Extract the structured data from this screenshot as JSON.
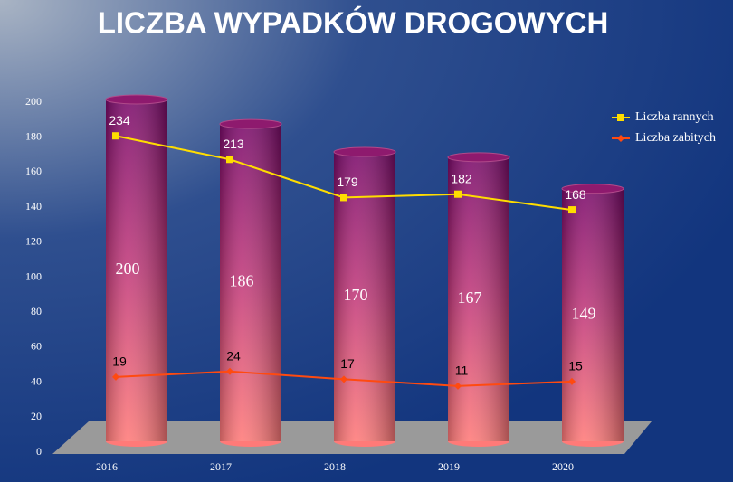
{
  "chart_data": {
    "type": "bar",
    "title": "LICZBA WYPADKÓW DROGOWYCH",
    "categories": [
      "2016",
      "2017",
      "2018",
      "2019",
      "2020"
    ],
    "series": [
      {
        "color": "#c0306e",
        "values": [
          200,
          186,
          170,
          167,
          149
        ]
      },
      {
        "name": "Liczba rannych",
        "type": "line",
        "axis": "y2",
        "color": "#ffdd00",
        "marker": "square",
        "values": [
          234,
          213,
          179,
          182,
          168
        ]
      },
      {
        "name": "Liczba zabitych",
        "type": "line",
        "axis": "y2",
        "color": "#ff4a10",
        "marker": "diamond",
        "values": [
          19,
          24,
          17,
          11,
          15
        ]
      }
    ],
    "ylim": [
      0,
      200
    ],
    "yticks": [
      0,
      20,
      40,
      60,
      80,
      100,
      120,
      140,
      160,
      180,
      200
    ],
    "y2lim": [
      -48,
      264
    ],
    "legend": "right"
  }
}
